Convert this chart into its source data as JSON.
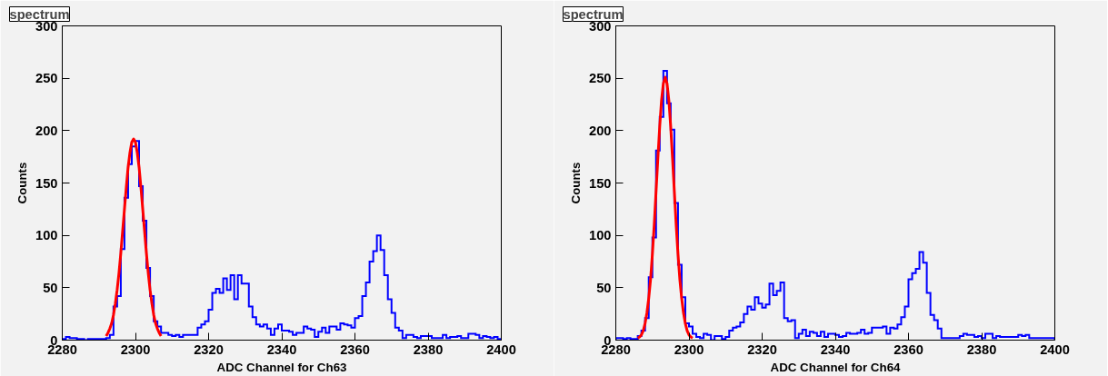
{
  "chart_data": [
    {
      "type": "histogram",
      "title": "spectrum",
      "xlabel": "ADC Channel for Ch63",
      "ylabel": "Counts",
      "xlim": [
        2280,
        2400
      ],
      "ylim": [
        0,
        300
      ],
      "xticks": [
        2280,
        2300,
        2320,
        2340,
        2360,
        2380,
        2400
      ],
      "yticks": [
        0,
        50,
        100,
        150,
        200,
        250,
        300
      ],
      "series": [
        {
          "color": "#0000ff",
          "bins": [
            2280,
            2281,
            2282,
            2283,
            2284,
            2285,
            2286,
            2287,
            2288,
            2289,
            2290,
            2291,
            2292,
            2293,
            2294,
            2295,
            2296,
            2297,
            2298,
            2299,
            2300,
            2301,
            2302,
            2303,
            2304,
            2305,
            2306,
            2307,
            2308,
            2309,
            2310,
            2311,
            2312,
            2313,
            2314,
            2315,
            2316,
            2317,
            2318,
            2319,
            2320,
            2321,
            2322,
            2323,
            2324,
            2325,
            2326,
            2327,
            2328,
            2329,
            2330,
            2331,
            2332,
            2333,
            2334,
            2335,
            2336,
            2337,
            2338,
            2339,
            2340,
            2341,
            2342,
            2343,
            2344,
            2345,
            2346,
            2347,
            2348,
            2349,
            2350,
            2351,
            2352,
            2353,
            2354,
            2355,
            2356,
            2357,
            2358,
            2359,
            2360,
            2361,
            2362,
            2363,
            2364,
            2365,
            2366,
            2367,
            2368,
            2369,
            2370,
            2371,
            2372,
            2373,
            2374,
            2375,
            2376,
            2377,
            2378,
            2379,
            2380,
            2381,
            2382,
            2383,
            2384,
            2385,
            2386,
            2387,
            2388,
            2389,
            2390,
            2391,
            2392,
            2393,
            2394,
            2395,
            2396,
            2397,
            2398,
            2399,
            2400
          ],
          "values": [
            1,
            3,
            2,
            2,
            1,
            1,
            0,
            1,
            1,
            1,
            1,
            1,
            2,
            5,
            32,
            42,
            87,
            136,
            168,
            185,
            190,
            147,
            114,
            69,
            42,
            18,
            13,
            7,
            7,
            5,
            4,
            5,
            3,
            5,
            5,
            5,
            5,
            12,
            15,
            18,
            29,
            45,
            49,
            45,
            59,
            48,
            62,
            39,
            62,
            54,
            54,
            32,
            22,
            15,
            13,
            15,
            11,
            5,
            11,
            15,
            9,
            9,
            8,
            5,
            7,
            7,
            13,
            11,
            10,
            3,
            8,
            12,
            7,
            13,
            13,
            10,
            16,
            15,
            14,
            12,
            21,
            23,
            42,
            55,
            75,
            85,
            100,
            86,
            62,
            39,
            26,
            12,
            9,
            2,
            5,
            5,
            3,
            2,
            4,
            4,
            4,
            2,
            2,
            2,
            5,
            2,
            3,
            3,
            4,
            2,
            2,
            6,
            6,
            5,
            2,
            4,
            3,
            2,
            3,
            1
          ]
        },
        {
          "type": "line",
          "color": "#ff0000",
          "x": [
            2292,
            2292.5,
            2293,
            2293.5,
            2294,
            2294.5,
            2295,
            2295.5,
            2296,
            2296.5,
            2297,
            2297.5,
            2298,
            2298.5,
            2299,
            2299.5,
            2300,
            2300.5,
            2301,
            2301.5,
            2302,
            2302.5,
            2303,
            2303.5,
            2304,
            2304.5,
            2305,
            2305.5,
            2306,
            2306.5,
            2307
          ],
          "values": [
            4,
            7,
            11,
            16,
            24,
            35,
            48,
            64,
            83,
            104,
            125,
            146,
            165,
            179,
            189,
            192,
            189,
            179,
            165,
            146,
            125,
            104,
            83,
            64,
            48,
            35,
            24,
            16,
            11,
            7,
            4
          ]
        }
      ]
    },
    {
      "type": "histogram",
      "title": "spectrum",
      "xlabel": "ADC Channel for Ch64",
      "ylabel": "Counts",
      "xlim": [
        2280,
        2400
      ],
      "ylim": [
        0,
        300
      ],
      "xticks": [
        2280,
        2300,
        2320,
        2340,
        2360,
        2380,
        2400
      ],
      "yticks": [
        0,
        50,
        100,
        150,
        200,
        250,
        300
      ],
      "series": [
        {
          "color": "#0000ff",
          "bins": [
            2280,
            2281,
            2282,
            2283,
            2284,
            2285,
            2286,
            2287,
            2288,
            2289,
            2290,
            2291,
            2292,
            2293,
            2294,
            2295,
            2296,
            2297,
            2298,
            2299,
            2300,
            2301,
            2302,
            2303,
            2304,
            2305,
            2306,
            2307,
            2308,
            2309,
            2310,
            2311,
            2312,
            2313,
            2314,
            2315,
            2316,
            2317,
            2318,
            2319,
            2320,
            2321,
            2322,
            2323,
            2324,
            2325,
            2326,
            2327,
            2328,
            2329,
            2330,
            2331,
            2332,
            2333,
            2334,
            2335,
            2336,
            2337,
            2338,
            2339,
            2340,
            2341,
            2342,
            2343,
            2344,
            2345,
            2346,
            2347,
            2348,
            2349,
            2350,
            2351,
            2352,
            2353,
            2354,
            2355,
            2356,
            2357,
            2358,
            2359,
            2360,
            2361,
            2362,
            2363,
            2364,
            2365,
            2366,
            2367,
            2368,
            2369,
            2370,
            2371,
            2372,
            2373,
            2374,
            2375,
            2376,
            2377,
            2378,
            2379,
            2380,
            2381,
            2382,
            2383,
            2384,
            2385,
            2386,
            2387,
            2388,
            2389,
            2390,
            2391,
            2392,
            2393,
            2394,
            2395,
            2396,
            2397,
            2398,
            2399,
            2400
          ],
          "values": [
            2,
            2,
            1,
            2,
            1,
            1,
            4,
            9,
            21,
            60,
            98,
            181,
            213,
            257,
            226,
            201,
            131,
            72,
            41,
            16,
            13,
            6,
            3,
            2,
            6,
            5,
            0,
            4,
            4,
            1,
            3,
            9,
            12,
            13,
            17,
            25,
            32,
            29,
            41,
            35,
            31,
            34,
            54,
            43,
            47,
            55,
            21,
            18,
            19,
            2,
            6,
            10,
            4,
            8,
            7,
            4,
            8,
            3,
            6,
            6,
            5,
            3,
            4,
            7,
            6,
            6,
            7,
            10,
            6,
            7,
            12,
            12,
            12,
            13,
            6,
            12,
            11,
            15,
            22,
            32,
            58,
            64,
            68,
            84,
            74,
            45,
            24,
            19,
            11,
            2,
            2,
            2,
            2,
            2,
            4,
            6,
            5,
            5,
            3,
            4,
            2,
            6,
            6,
            2,
            4,
            3,
            3,
            3,
            3,
            3,
            5,
            4,
            5,
            2,
            2,
            2,
            2,
            2,
            2,
            2
          ]
        },
        {
          "type": "line",
          "color": "#ff0000",
          "x": [
            2286,
            2286.5,
            2287,
            2287.5,
            2288,
            2288.5,
            2289,
            2289.5,
            2290,
            2290.5,
            2291,
            2291.5,
            2292,
            2292.5,
            2293,
            2293.5,
            2294,
            2294.5,
            2295,
            2295.5,
            2296,
            2296.5,
            2297,
            2297.5,
            2298,
            2298.5,
            2299,
            2299.5,
            2300,
            2300.5,
            2301
          ],
          "values": [
            2,
            3,
            5,
            9,
            16,
            26,
            40,
            58,
            82,
            110,
            142,
            174,
            204,
            229,
            245,
            251,
            245,
            229,
            204,
            174,
            142,
            110,
            82,
            58,
            40,
            26,
            16,
            9,
            5,
            3,
            2
          ]
        }
      ]
    }
  ]
}
